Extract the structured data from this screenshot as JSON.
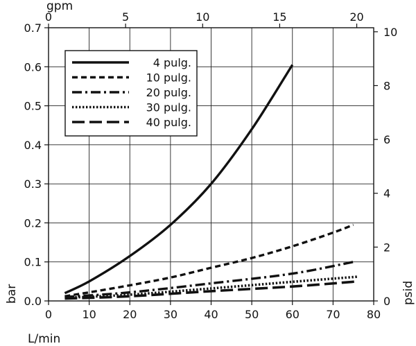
{
  "chart_data": {
    "type": "line",
    "x_bottom": {
      "label": "L/min",
      "range": [
        0,
        80
      ],
      "ticks": [
        0,
        10,
        20,
        30,
        40,
        50,
        60,
        70,
        80
      ]
    },
    "x_top": {
      "label": "gpm",
      "range": [
        0,
        21.1
      ],
      "ticks": [
        0,
        5,
        10,
        15,
        20
      ]
    },
    "y_left": {
      "label": "bar",
      "range": [
        0,
        0.7
      ],
      "ticks": [
        "0.0",
        "0.1",
        "0.2",
        "0.3",
        "0.4",
        "0.5",
        "0.6",
        "0.7"
      ]
    },
    "y_right": {
      "label": "psid",
      "range": [
        0,
        10.15
      ],
      "ticks": [
        0,
        2,
        4,
        6,
        8,
        10
      ]
    },
    "grid": true,
    "legend": {
      "placement": "top-left"
    },
    "series": [
      {
        "name": "4 pulg.",
        "style": "solid",
        "x": [
          4,
          10,
          20,
          30,
          40,
          50,
          60
        ],
        "y": [
          0.02,
          0.05,
          0.115,
          0.195,
          0.3,
          0.44,
          0.605
        ]
      },
      {
        "name": "10 pulg.",
        "style": "dashed",
        "x": [
          4,
          10,
          20,
          30,
          40,
          50,
          60,
          70,
          75
        ],
        "y": [
          0.012,
          0.022,
          0.04,
          0.06,
          0.085,
          0.11,
          0.14,
          0.175,
          0.195
        ]
      },
      {
        "name": "20 pulg.",
        "style": "dash-dot",
        "x": [
          4,
          20,
          40,
          60,
          75
        ],
        "y": [
          0.01,
          0.022,
          0.045,
          0.07,
          0.1
        ]
      },
      {
        "name": "30 pulg.",
        "style": "dotted",
        "x": [
          4,
          20,
          40,
          60,
          76
        ],
        "y": [
          0.008,
          0.016,
          0.032,
          0.049,
          0.062
        ]
      },
      {
        "name": "40 pulg.",
        "style": "long-dash",
        "x": [
          4,
          20,
          40,
          60,
          76
        ],
        "y": [
          0.006,
          0.012,
          0.025,
          0.037,
          0.05
        ]
      }
    ]
  }
}
